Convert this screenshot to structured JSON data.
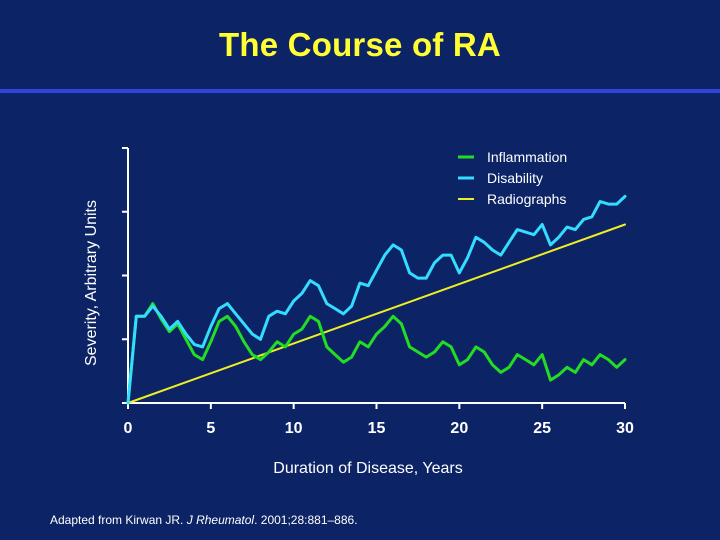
{
  "slide": {
    "title": "The Course of RA",
    "citation_pre": "Adapted from Kirwan JR. ",
    "citation_journal": "J Rheumatol",
    "citation_post": ". 2001;28:881–886."
  },
  "colors": {
    "background": "#0c2366",
    "title": "#ffff33",
    "inflammation": "#22dd22",
    "disability": "#33ddff",
    "radiographs": "#eeee22",
    "axis": "#ffffff"
  },
  "chart_data": {
    "type": "line",
    "title": "The Course of RA",
    "xlabel": "Duration of Disease, Years",
    "ylabel": "Severity, Arbitrary Units",
    "xlim": [
      0,
      30
    ],
    "ylim": [
      0,
      100
    ],
    "xticks": [
      0,
      5,
      10,
      15,
      20,
      25,
      30
    ],
    "yticks": [
      0,
      25,
      50,
      75,
      100
    ],
    "show_ytick_labels": false,
    "legend": "top-right",
    "series": [
      {
        "name": "Inflammation",
        "color": "#22dd22",
        "x": [
          0,
          0.5,
          1,
          1.5,
          2,
          2.5,
          3,
          3.5,
          4,
          4.5,
          5,
          5.5,
          6,
          6.5,
          7,
          7.5,
          8,
          8.5,
          9,
          9.5,
          10,
          10.5,
          11,
          11.5,
          12,
          12.5,
          13,
          13.5,
          14,
          14.5,
          15,
          15.5,
          16,
          16.5,
          17,
          17.5,
          18,
          18.5,
          19,
          19.5,
          20,
          20.5,
          21,
          21.5,
          22,
          22.5,
          23,
          23.5,
          24,
          24.5,
          25,
          25.5,
          26,
          26.5,
          27,
          27.5,
          28,
          28.5,
          29,
          29.5,
          30
        ],
        "values": [
          0,
          34,
          34,
          39,
          33,
          28,
          31,
          25,
          19,
          17,
          24,
          32,
          34,
          30,
          24,
          19,
          17,
          20,
          24,
          22,
          27,
          29,
          34,
          32,
          22,
          19,
          16,
          18,
          24,
          22,
          27,
          30,
          34,
          31,
          22,
          20,
          18,
          20,
          24,
          22,
          15,
          17,
          22,
          20,
          15,
          12,
          14,
          19,
          17,
          15,
          19,
          9,
          11,
          14,
          12,
          17,
          15,
          19,
          17,
          14,
          17
        ]
      },
      {
        "name": "Disability",
        "color": "#33ddff",
        "x": [
          0,
          0.5,
          1,
          1.5,
          2,
          2.5,
          3,
          3.5,
          4,
          4.5,
          5,
          5.5,
          6,
          6.5,
          7,
          7.5,
          8,
          8.5,
          9,
          9.5,
          10,
          10.5,
          11,
          11.5,
          12,
          12.5,
          13,
          13.5,
          14,
          14.5,
          15,
          15.5,
          16,
          16.5,
          17,
          17.5,
          18,
          18.5,
          19,
          19.5,
          20,
          20.5,
          21,
          21.5,
          22,
          22.5,
          23,
          23.5,
          24,
          24.5,
          25,
          25.5,
          26,
          26.5,
          27,
          27.5,
          28,
          28.5,
          29,
          29.5,
          30
        ],
        "values": [
          0,
          34,
          34,
          38,
          34,
          29,
          32,
          27,
          23,
          22,
          30,
          37,
          39,
          35,
          31,
          27,
          25,
          34,
          36,
          35,
          40,
          43,
          48,
          46,
          39,
          37,
          35,
          38,
          47,
          46,
          52,
          58,
          62,
          60,
          51,
          49,
          49,
          55,
          58,
          58,
          51,
          57,
          65,
          63,
          60,
          58,
          63,
          68,
          67,
          66,
          70,
          62,
          65,
          69,
          68,
          72,
          73,
          79,
          78,
          78,
          81
        ]
      },
      {
        "name": "Radiographs",
        "color": "#eeee22",
        "x": [
          0,
          30
        ],
        "values": [
          0,
          70
        ]
      }
    ]
  }
}
